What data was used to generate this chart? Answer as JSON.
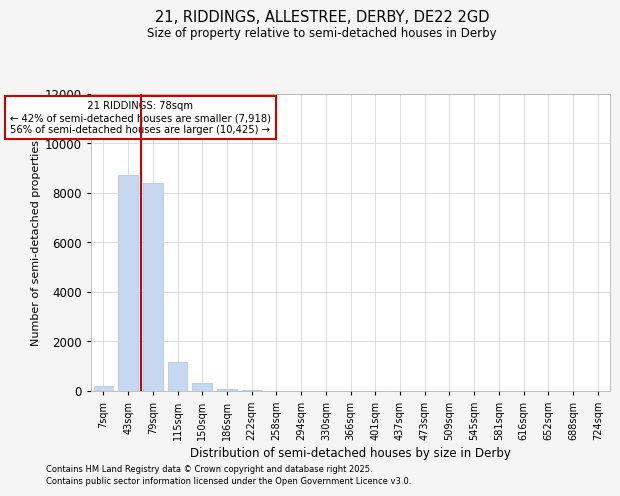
{
  "title_line1": "21, RIDDINGS, ALLESTREE, DERBY, DE22 2GD",
  "title_line2": "Size of property relative to semi-detached houses in Derby",
  "xlabel": "Distribution of semi-detached houses by size in Derby",
  "ylabel": "Number of semi-detached properties",
  "categories": [
    "7sqm",
    "43sqm",
    "79sqm",
    "115sqm",
    "150sqm",
    "186sqm",
    "222sqm",
    "258sqm",
    "294sqm",
    "330sqm",
    "366sqm",
    "401sqm",
    "437sqm",
    "473sqm",
    "509sqm",
    "545sqm",
    "581sqm",
    "616sqm",
    "652sqm",
    "688sqm",
    "724sqm"
  ],
  "values": [
    200,
    8700,
    8400,
    1150,
    330,
    80,
    25,
    5,
    2,
    1,
    0,
    0,
    0,
    0,
    0,
    0,
    0,
    0,
    0,
    0,
    0
  ],
  "bar_color": "#c5d8ef",
  "bar_edge_color": "#a8c4e0",
  "property_label": "21 RIDDINGS: 78sqm",
  "pct_smaller": 42,
  "pct_larger": 56,
  "count_smaller": 7918,
  "count_larger": 10425,
  "vline_color": "#cc0000",
  "annotation_box_color": "#cc0000",
  "ylim": [
    0,
    12000
  ],
  "yticks": [
    0,
    2000,
    4000,
    6000,
    8000,
    10000,
    12000
  ],
  "footnote_line1": "Contains HM Land Registry data © Crown copyright and database right 2025.",
  "footnote_line2": "Contains public sector information licensed under the Open Government Licence v3.0.",
  "background_color": "#f5f5f5",
  "plot_bg_color": "#ffffff"
}
